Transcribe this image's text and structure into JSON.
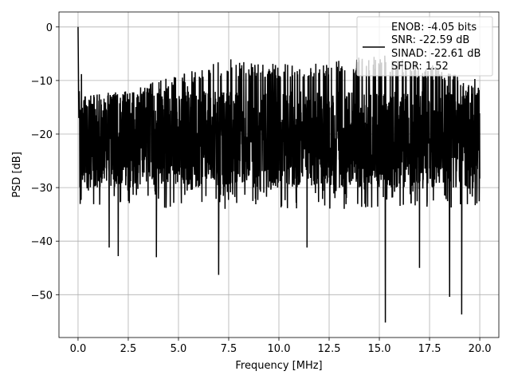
{
  "chart_data": {
    "type": "line",
    "xlabel": "Frequency [MHz]",
    "ylabel": "PSD [dB]",
    "xlim": [
      -0.95,
      20.95
    ],
    "ylim": [
      -58.0,
      2.8
    ],
    "x_ticks": [
      0.0,
      2.5,
      5.0,
      7.5,
      10.0,
      12.5,
      15.0,
      17.5,
      20.0
    ],
    "x_tick_labels": [
      "0.0",
      "2.5",
      "5.0",
      "7.5",
      "10.0",
      "12.5",
      "15.0",
      "17.5",
      "20.0"
    ],
    "y_ticks": [
      0,
      -10,
      -20,
      -30,
      -40,
      -50
    ],
    "y_tick_labels": [
      "0",
      "−10",
      "−20",
      "−30",
      "−40",
      "−50"
    ],
    "grid": true,
    "legend_position": "top-right",
    "line_color": "#000000",
    "series": [
      {
        "legend_lines": [
          "ENOB: -4.05 bits",
          "SNR: -22.59 dB",
          "SINAD: -22.61 dB",
          "SFDR: 1.52"
        ],
        "x_range": [
          0.0,
          20.0
        ],
        "peak": [
          0.0,
          0.0
        ],
        "noise_floor_band": [
          -30,
          -10
        ],
        "max_envelope": [
          [
            0.0,
            0.0
          ],
          [
            0.3,
            -13.0
          ],
          [
            2.0,
            -12.0
          ],
          [
            4.0,
            -10.0
          ],
          [
            7.5,
            -6.0
          ],
          [
            10.0,
            -7.0
          ],
          [
            13.5,
            -6.0
          ],
          [
            15.0,
            -5.0
          ],
          [
            17.5,
            -7.0
          ],
          [
            20.0,
            -10.0
          ]
        ],
        "notable_minima": [
          [
            7.0,
            -46.3
          ],
          [
            15.3,
            -55.2
          ],
          [
            18.5,
            -50.4
          ],
          [
            19.1,
            -53.7
          ],
          [
            17.0,
            -45.0
          ],
          [
            2.0,
            -42.8
          ],
          [
            3.9,
            -43.0
          ],
          [
            11.4,
            -41.2
          ],
          [
            1.55,
            -41.2
          ]
        ]
      }
    ]
  }
}
